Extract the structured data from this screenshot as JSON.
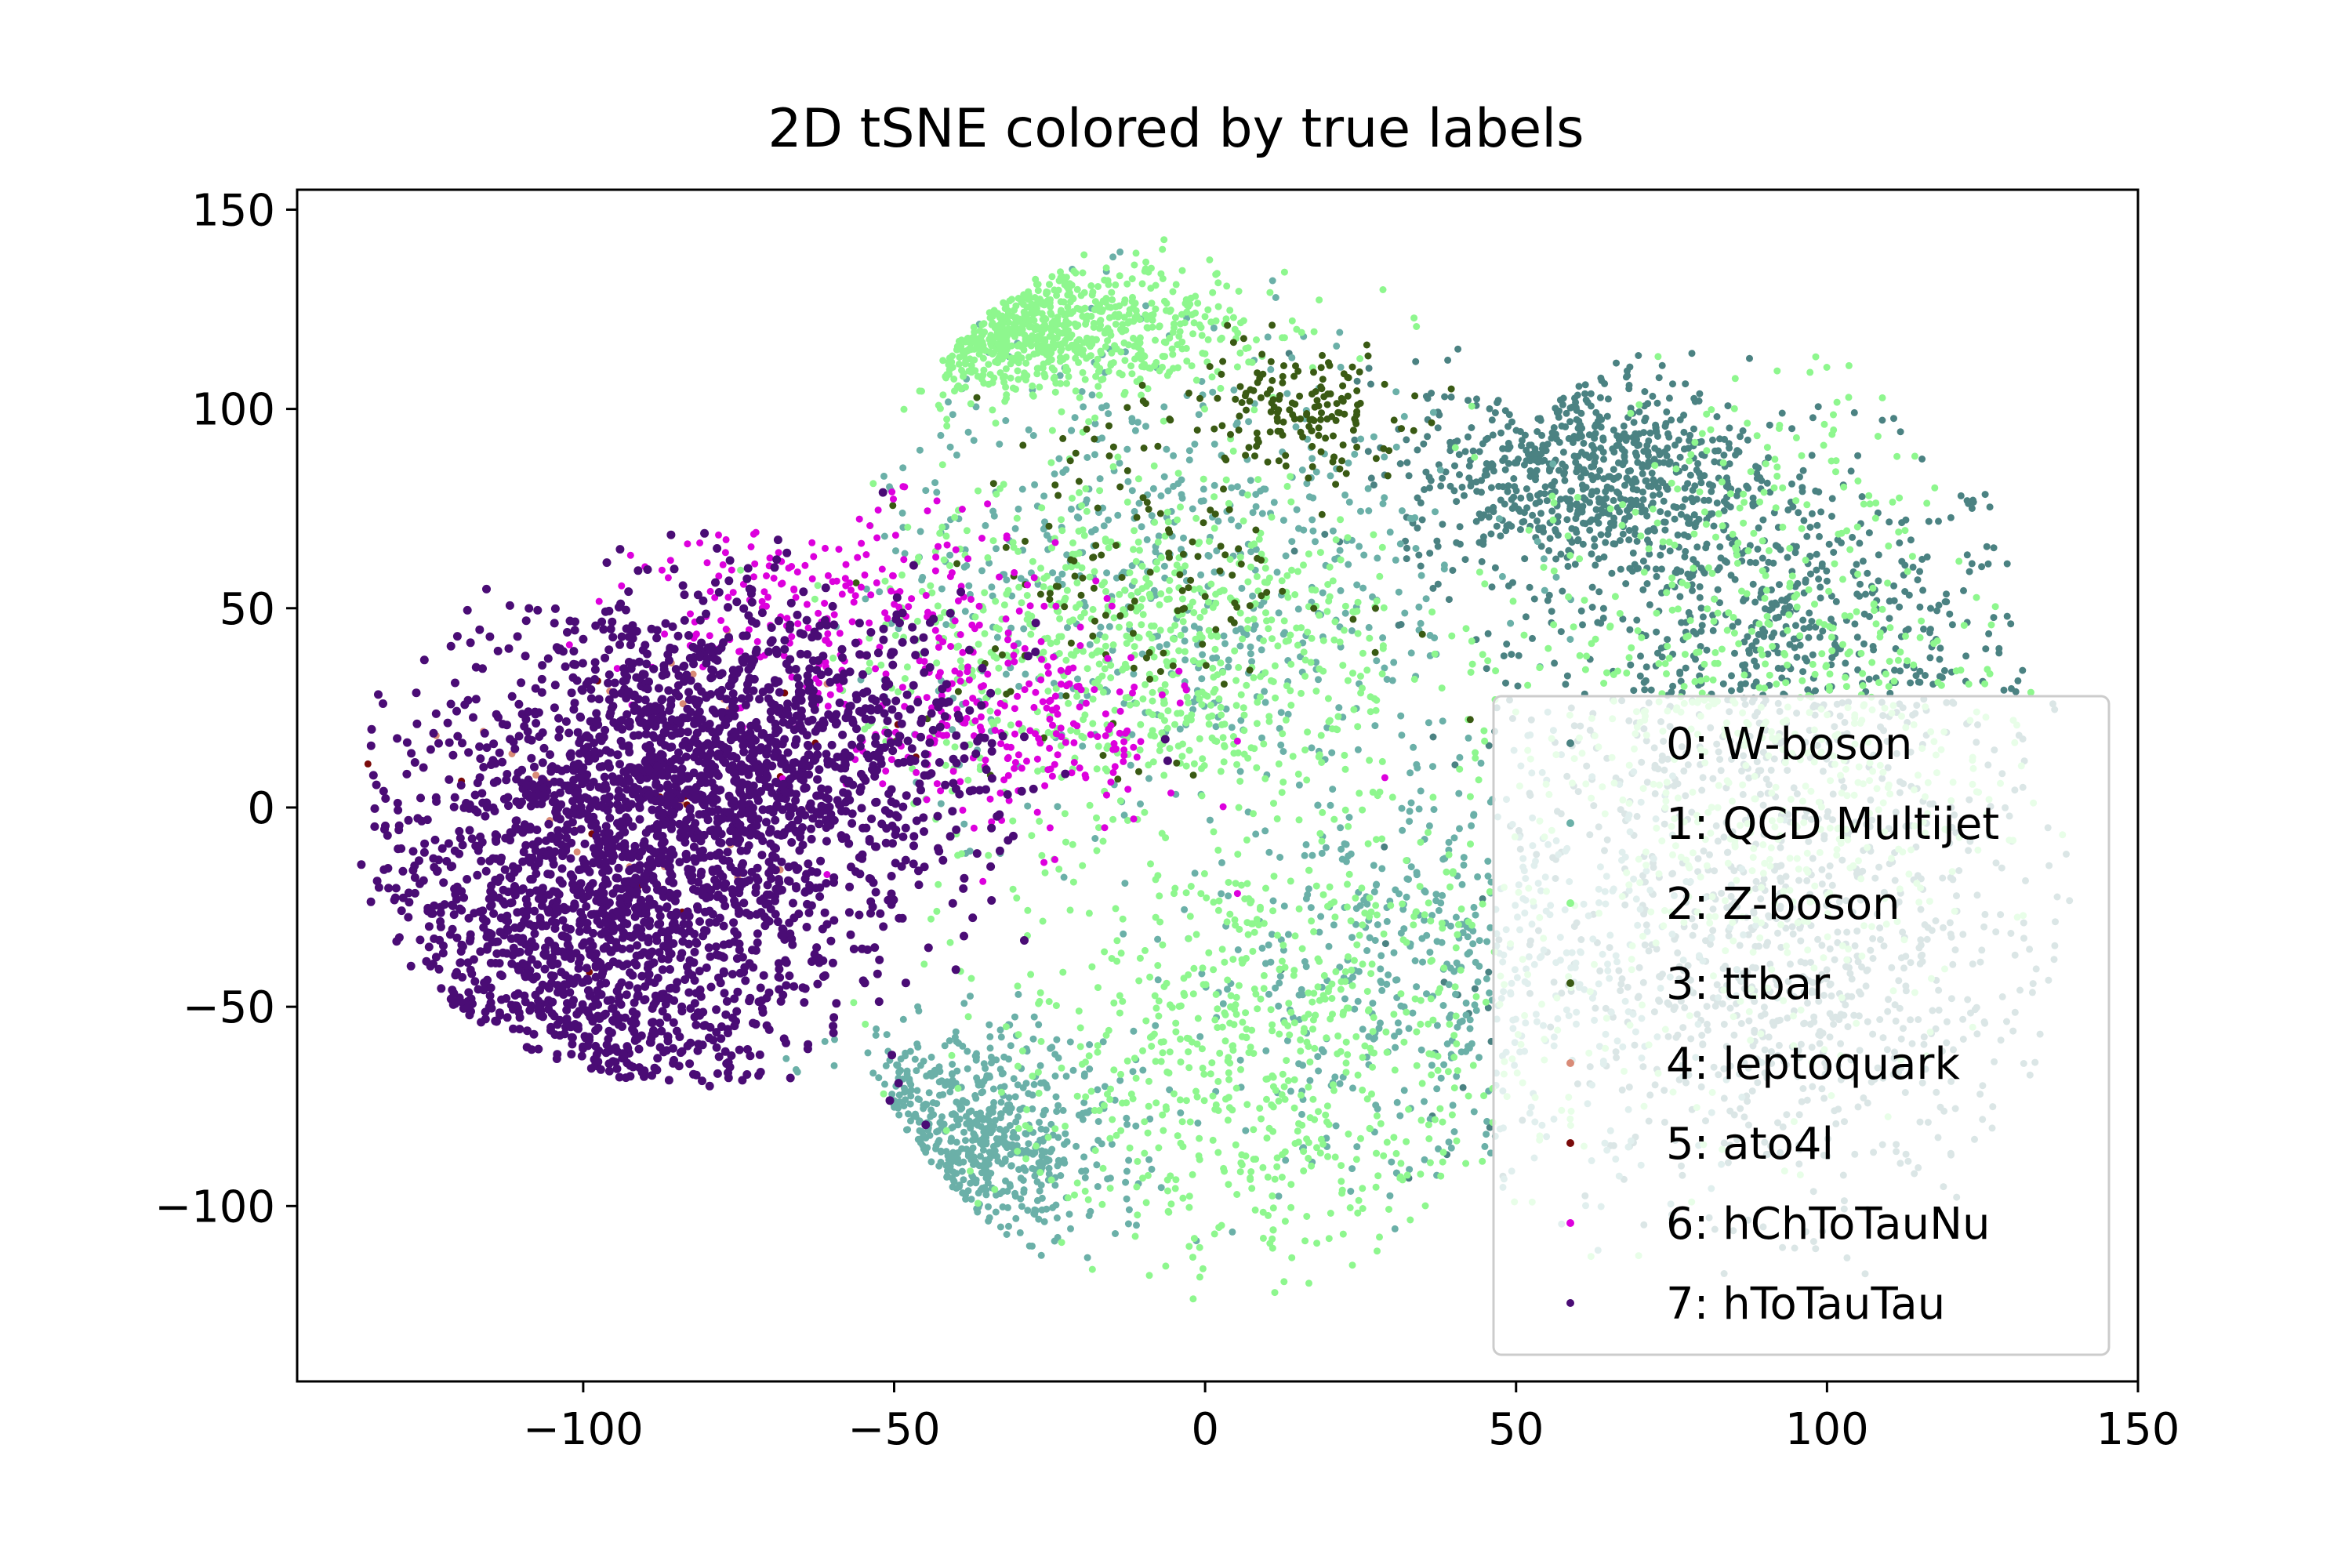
{
  "chart_data": {
    "type": "scatter",
    "title": "2D tSNE colored by true labels",
    "xlabel": "",
    "ylabel": "",
    "xlim": [
      -146,
      150
    ],
    "ylim": [
      -144,
      155
    ],
    "xticks": [
      -100,
      -50,
      0,
      50,
      100,
      150
    ],
    "yticks": [
      -100,
      -50,
      0,
      50,
      100,
      150
    ],
    "xtick_labels": [
      "−100",
      "−50",
      "0",
      "50",
      "100",
      "150"
    ],
    "ytick_labels": [
      "−100",
      "−50",
      "0",
      "50",
      "100",
      "150"
    ],
    "grid": false,
    "legend_position": "lower right",
    "series": [
      {
        "name": "0: W-boson",
        "color": "#4b8282",
        "clusters": [
          {
            "cx": 92,
            "cy": 40,
            "rx": 38,
            "ry": 45
          },
          {
            "cx": 95,
            "cy": -45,
            "rx": 40,
            "ry": 50
          },
          {
            "cx": 60,
            "cy": 85,
            "rx": 25,
            "ry": 25
          }
        ],
        "count": 2200
      },
      {
        "name": "1: QCD Multijet",
        "color": "#6bb0a8",
        "clusters": [
          {
            "cx": -5,
            "cy": 60,
            "rx": 45,
            "ry": 55
          },
          {
            "cx": -40,
            "cy": -85,
            "rx": 22,
            "ry": 25
          },
          {
            "cx": 40,
            "cy": -40,
            "rx": 40,
            "ry": 50
          }
        ],
        "count": 1800
      },
      {
        "name": "2: Z-boson",
        "color": "#8ef78e",
        "clusters": [
          {
            "cx": -35,
            "cy": 120,
            "rx": 35,
            "ry": 15
          },
          {
            "cx": 10,
            "cy": -60,
            "rx": 40,
            "ry": 55
          },
          {
            "cx": 90,
            "cy": 20,
            "rx": 35,
            "ry": 80
          },
          {
            "cx": -10,
            "cy": 40,
            "rx": 40,
            "ry": 40
          }
        ],
        "count": 3000
      },
      {
        "name": "3: ttbar",
        "color": "#3a5a14",
        "clusters": [
          {
            "cx": 15,
            "cy": 100,
            "rx": 15,
            "ry": 15
          },
          {
            "cx": -10,
            "cy": 60,
            "rx": 30,
            "ry": 40
          }
        ],
        "count": 300
      },
      {
        "name": "4: leptoquark",
        "color": "#d98b77",
        "clusters": [
          {
            "cx": -90,
            "cy": 0,
            "rx": 30,
            "ry": 40
          }
        ],
        "count": 25
      },
      {
        "name": "5: ato4l",
        "color": "#7a0a0a",
        "clusters": [
          {
            "cx": -90,
            "cy": 0,
            "rx": 35,
            "ry": 45
          }
        ],
        "count": 20
      },
      {
        "name": "6: hChToTauNu",
        "color": "#dd00dd",
        "clusters": [
          {
            "cx": -30,
            "cy": 20,
            "rx": 25,
            "ry": 25
          },
          {
            "cx": -60,
            "cy": 50,
            "rx": 30,
            "ry": 25
          }
        ],
        "count": 450
      },
      {
        "name": "7: hToTauTau",
        "color": "#4a0c75",
        "clusters": [
          {
            "cx": -75,
            "cy": 10,
            "rx": 35,
            "ry": 38
          },
          {
            "cx": -100,
            "cy": -35,
            "rx": 33,
            "ry": 60
          }
        ],
        "count": 3000
      }
    ]
  }
}
